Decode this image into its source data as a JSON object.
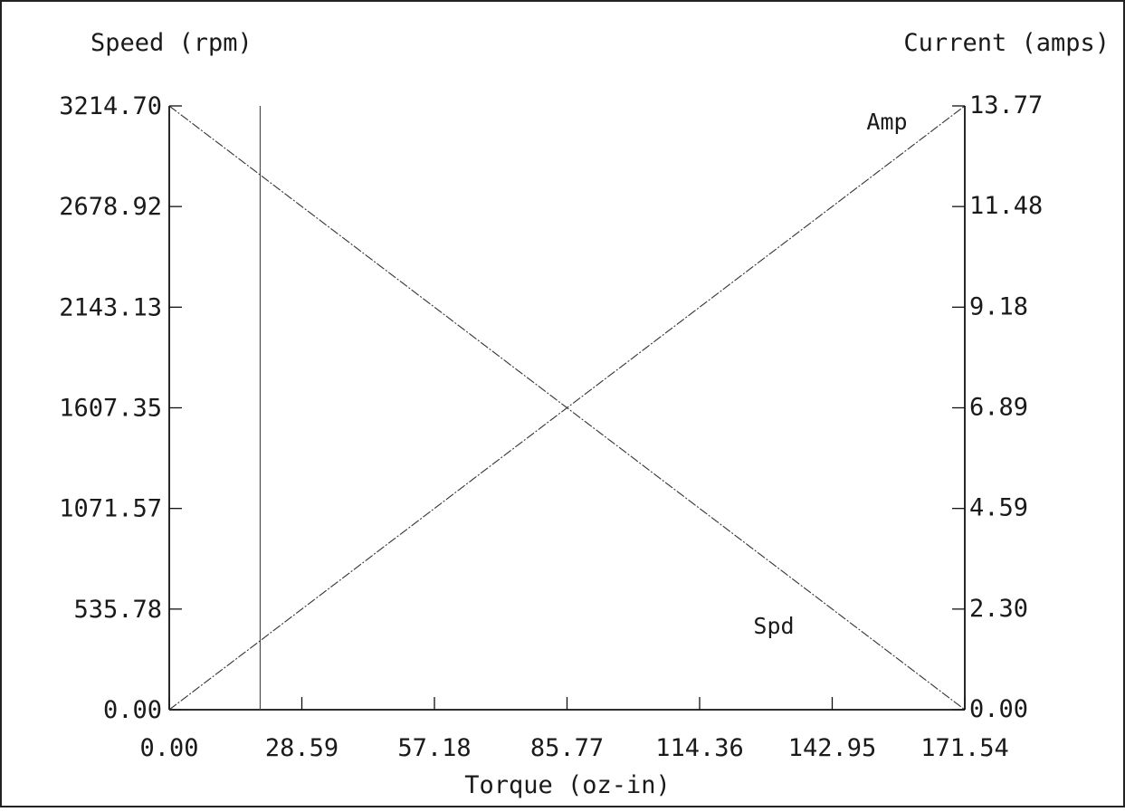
{
  "chart_data": {
    "type": "line",
    "xlabel": "Torque (oz-in)",
    "ylabel_left": "Speed (rpm)",
    "ylabel_right": "Current (amps)",
    "xlim": [
      0,
      171.54
    ],
    "ylim_left": [
      0,
      3214.7
    ],
    "ylim_right": [
      0,
      13.77
    ],
    "x_ticks": [
      "0.00",
      "28.59",
      "57.18",
      "85.77",
      "114.36",
      "142.95",
      "171.54"
    ],
    "y_left_ticks": [
      "0.00",
      "535.78",
      "1071.57",
      "1607.35",
      "2143.13",
      "2678.92",
      "3214.70"
    ],
    "y_right_ticks": [
      "0.00",
      "2.30",
      "4.59",
      "6.89",
      "9.18",
      "11.48",
      "13.77"
    ],
    "series": [
      {
        "name": "Spd",
        "axis": "left",
        "x": [
          0,
          171.54
        ],
        "values": [
          3214.7,
          0
        ]
      },
      {
        "name": "Amp",
        "axis": "right",
        "x": [
          0,
          171.54
        ],
        "values": [
          0,
          13.77
        ]
      }
    ],
    "marker_x": 19.6,
    "grid": false,
    "line_color": "#333333"
  }
}
